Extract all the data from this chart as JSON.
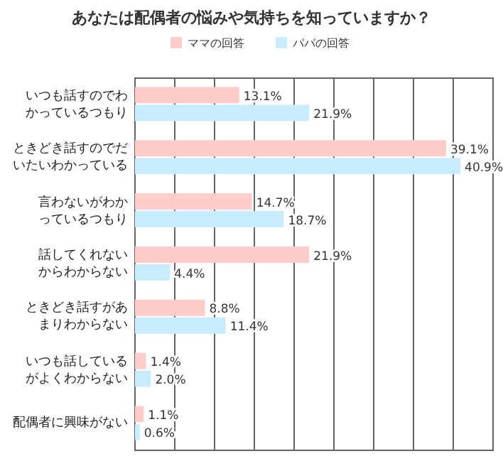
{
  "chart_data": {
    "type": "bar",
    "orientation": "horizontal",
    "title": "あなたは配偶者の悩みや気持ちを知っていますか？",
    "categories": [
      "いつも話すのでわかっているつもり",
      "ときどき話すのでだいたいわかっている",
      "言わないがわかっているつもり",
      "話してくれないからわからない",
      "ときどき話すがあまりわからない",
      "いつも話しているがよくわからない",
      "配偶者に興味がない"
    ],
    "series": [
      {
        "name": "ママの回答",
        "color": "#ffcccc",
        "values": [
          13.1,
          39.1,
          14.7,
          21.9,
          8.8,
          1.4,
          1.1
        ],
        "value_labels": [
          "13.1%",
          "39.1%",
          "14.7%",
          "21.9%",
          "8.8%",
          "1.4%",
          "1.1%"
        ]
      },
      {
        "name": "パパの回答",
        "color": "#c8ecfc",
        "values": [
          21.9,
          40.9,
          18.7,
          4.4,
          11.4,
          2.0,
          0.6
        ],
        "value_labels": [
          "21.9%",
          "40.9%",
          "18.7%",
          "4.4%",
          "11.4%",
          "2.0%",
          "0.6%"
        ]
      }
    ],
    "xlim": [
      0,
      45
    ],
    "xticks": [
      {
        "value": 0,
        "label": null
      },
      {
        "value": 5,
        "label": null
      },
      {
        "value": 10,
        "label": null
      },
      {
        "value": 15,
        "label": null
      },
      {
        "value": 20,
        "label": null
      },
      {
        "value": 25,
        "label": null
      },
      {
        "value": 30,
        "label": null
      },
      {
        "value": 35,
        "label": null
      },
      {
        "value": 40,
        "label": null
      },
      {
        "value": 45,
        "label": null
      }
    ],
    "grid": "x",
    "legend": "top"
  }
}
